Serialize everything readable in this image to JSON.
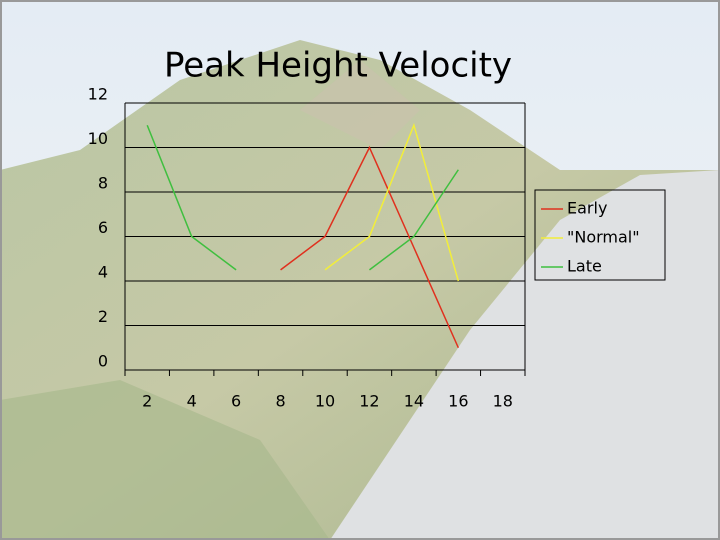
{
  "chart_data": {
    "type": "line",
    "title": "Peak Height Velocity",
    "categories": [
      "2",
      "4",
      "6",
      "8",
      "10",
      "12",
      "14",
      "16",
      "18"
    ],
    "series": [
      {
        "name": "Early",
        "color": "#e0301e",
        "values": [
          null,
          null,
          null,
          4.5,
          6,
          10,
          5.5,
          1,
          null
        ]
      },
      {
        "name": "\"Normal\"",
        "color": "#f2ee3a",
        "values": [
          null,
          null,
          null,
          null,
          4.5,
          6,
          11,
          4,
          null
        ]
      },
      {
        "name": "Late",
        "color": "#3fbf3f",
        "values": [
          11,
          6,
          4.5,
          null,
          null,
          4.5,
          6,
          9,
          null
        ]
      }
    ],
    "ylim": [
      0,
      12
    ],
    "yticks": [
      0,
      2,
      4,
      6,
      8,
      10,
      12
    ],
    "grid": true,
    "legend": "right"
  }
}
